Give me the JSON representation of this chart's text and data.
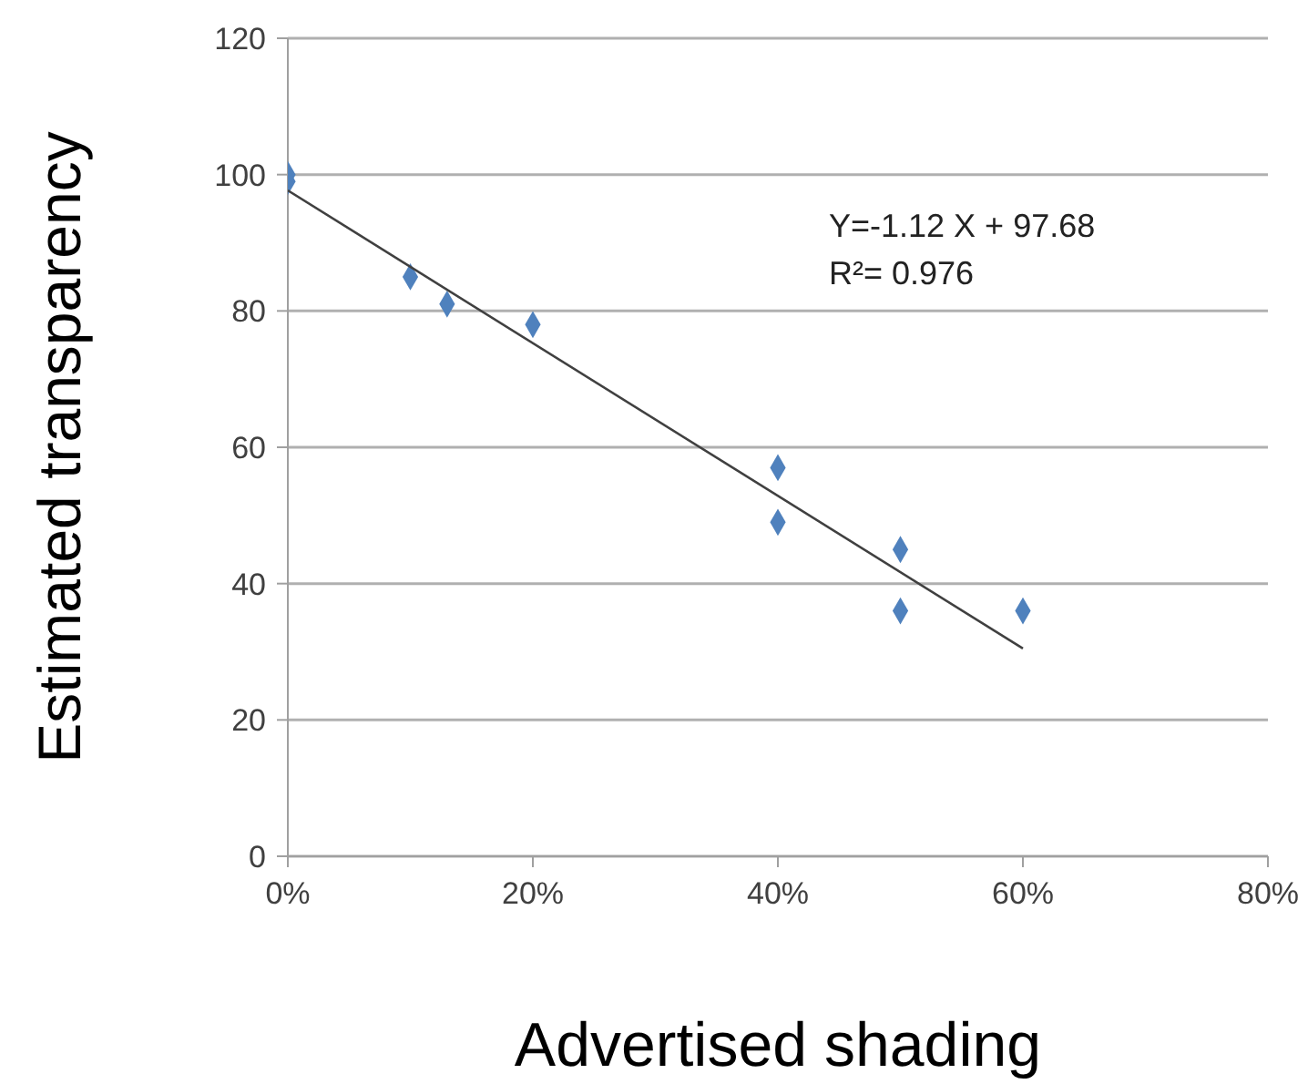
{
  "chart_data": {
    "type": "scatter",
    "xlabel": "Advertised shading",
    "ylabel": "Estimated transparency",
    "series": [
      {
        "type": "scatter",
        "marker": "diamond",
        "color": "#4f81bd",
        "x": [
          0,
          0,
          10,
          13,
          20,
          40,
          40,
          50,
          50,
          60
        ],
        "values": [
          100,
          99,
          85,
          81,
          78,
          57,
          49,
          45,
          36,
          36
        ]
      },
      {
        "type": "line",
        "color": "#404040",
        "x": [
          0,
          60
        ],
        "values": [
          97.68,
          30.48
        ]
      }
    ],
    "xlim": [
      0,
      80
    ],
    "xticks": [
      {
        "value": 0,
        "label": "0%"
      },
      {
        "value": 20,
        "label": "20%"
      },
      {
        "value": 40,
        "label": "40%"
      },
      {
        "value": 60,
        "label": "60%"
      },
      {
        "value": 80,
        "label": "80%"
      }
    ],
    "ylim": [
      0,
      120
    ],
    "yticks": [
      0,
      20,
      40,
      60,
      80,
      100,
      120
    ],
    "grid": "y",
    "annotations": [
      "Y=-1.12 X + 97.68",
      "R²= 0.976"
    ]
  }
}
